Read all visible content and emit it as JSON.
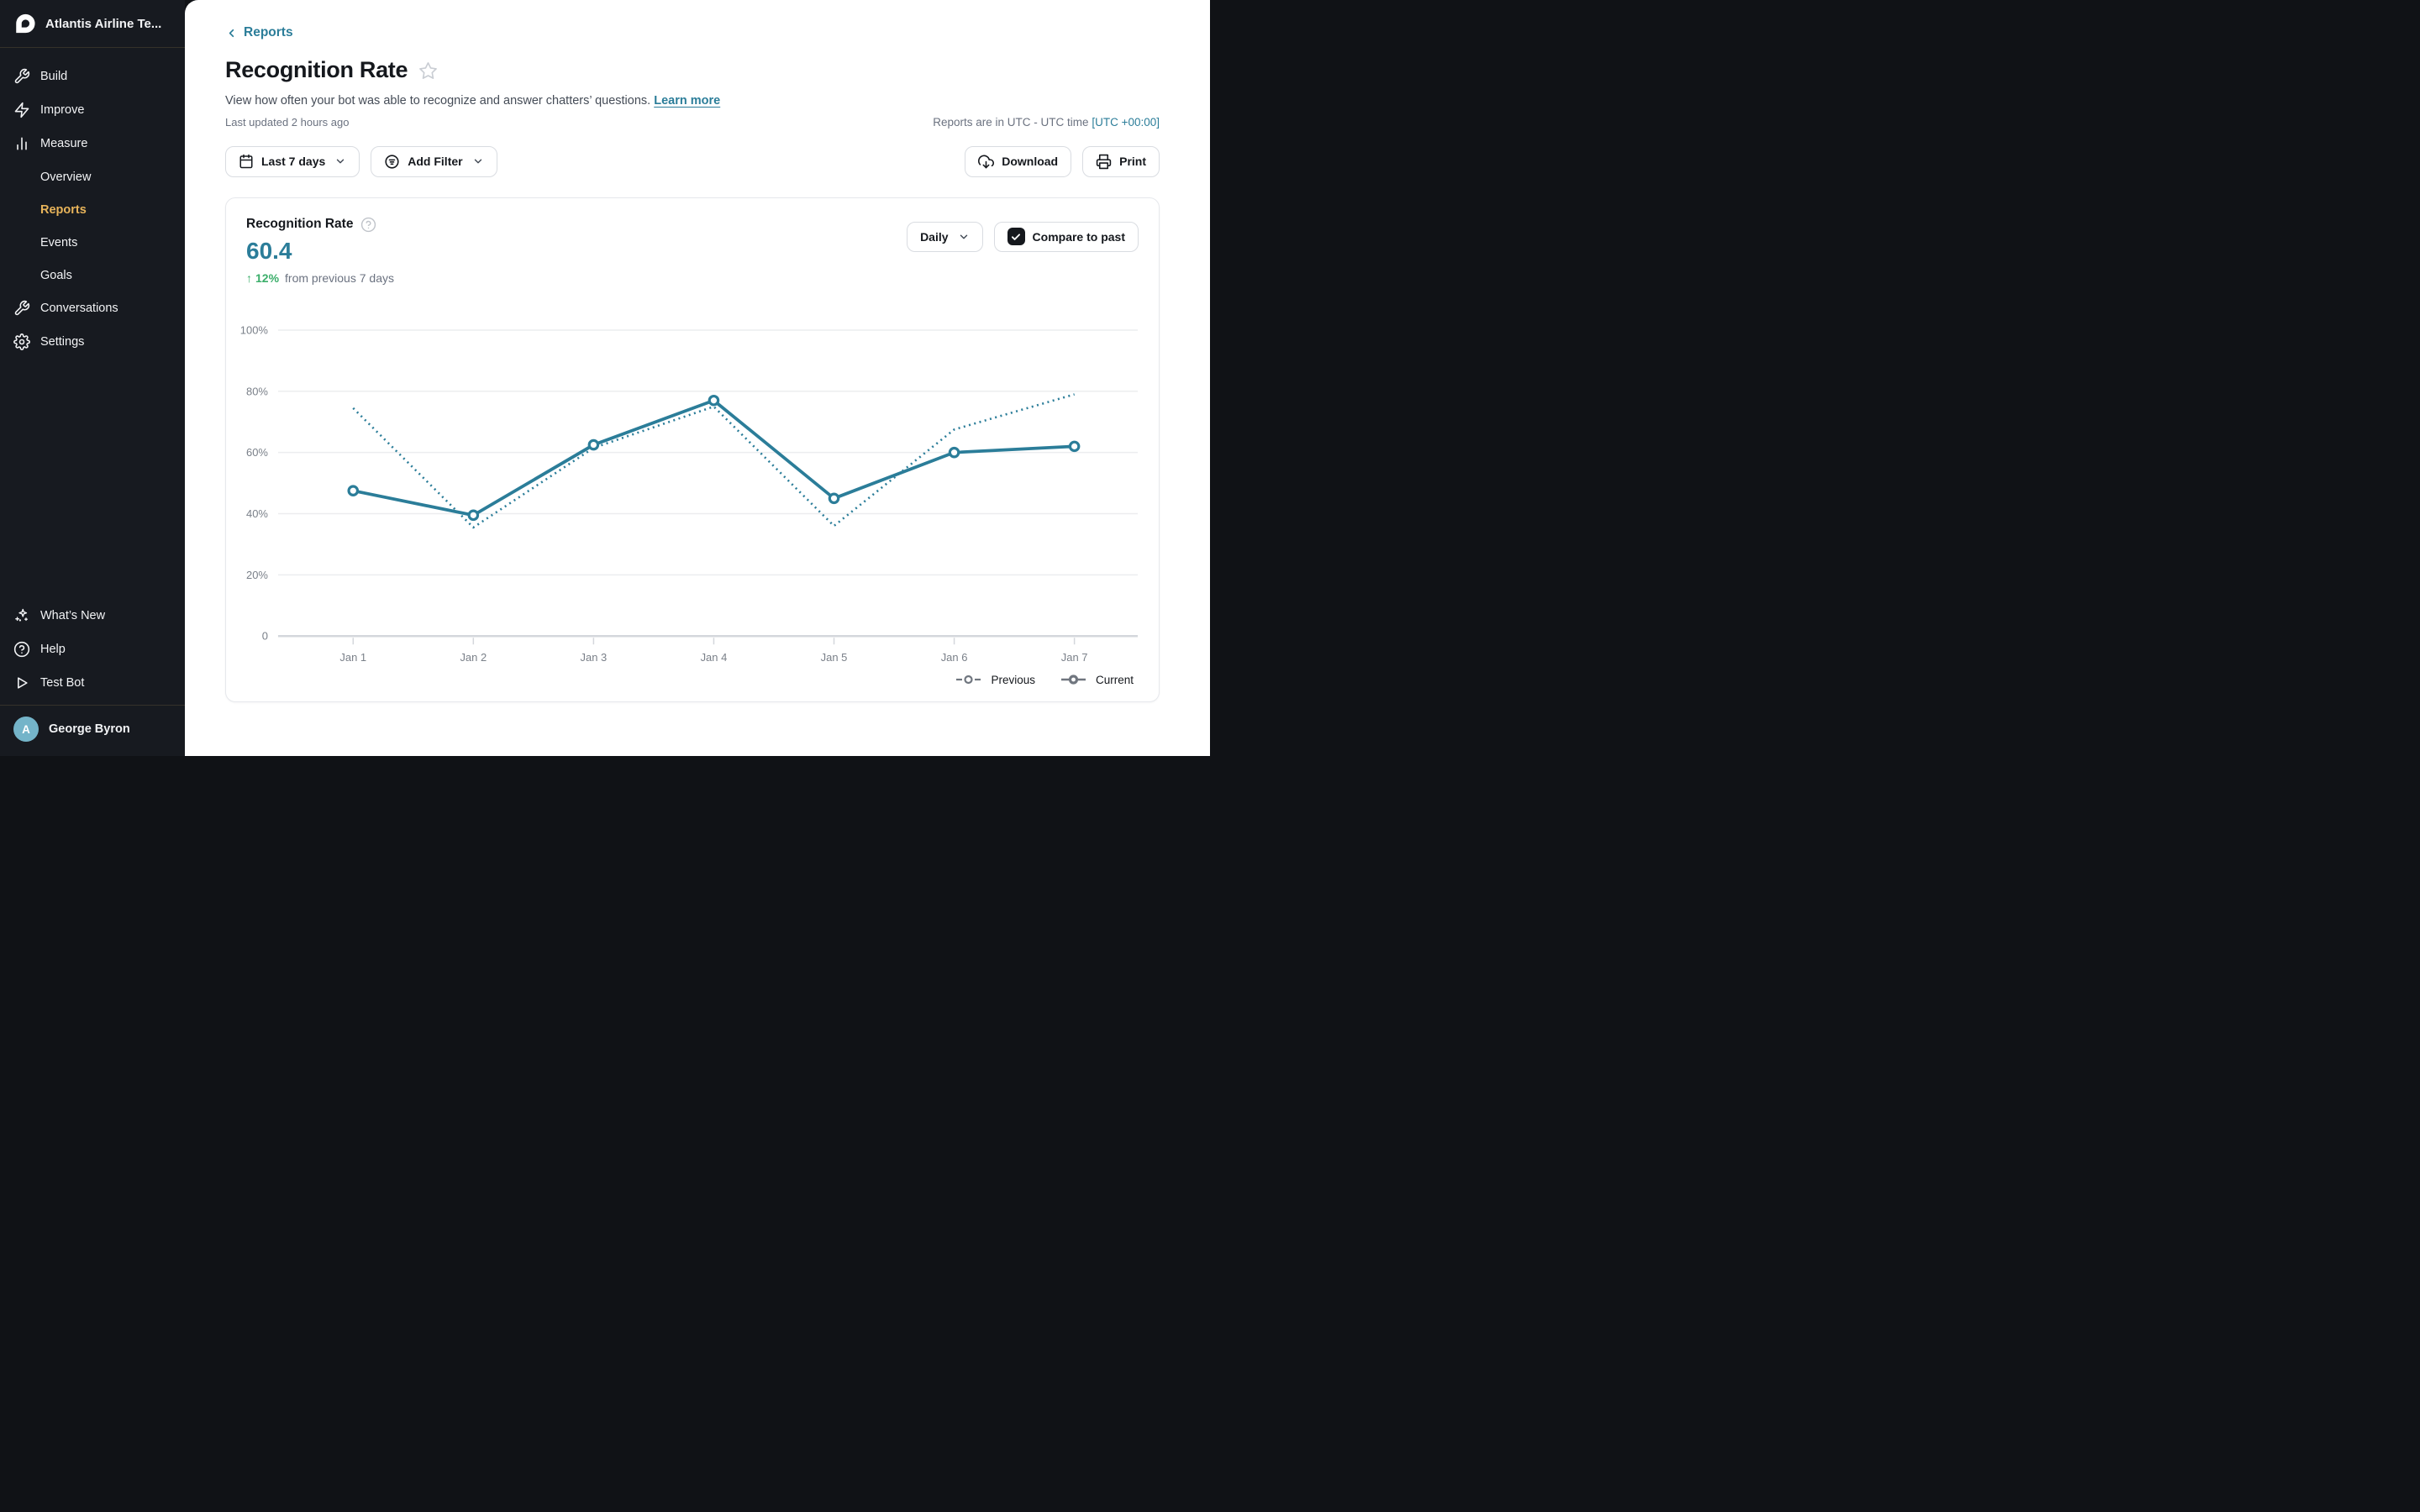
{
  "sidebar": {
    "workspace": "Atlantis Airline Te...",
    "build": "Build",
    "improve": "Improve",
    "measure": "Measure",
    "overview": "Overview",
    "reports": "Reports",
    "events": "Events",
    "goals": "Goals",
    "conversations": "Conversations",
    "settings": "Settings",
    "whats_new": "What’s New",
    "help": "Help",
    "test_bot": "Test Bot",
    "user": "George Byron",
    "user_initial": "A"
  },
  "header": {
    "breadcrumb": "Reports",
    "title": "Recognition Rate",
    "description": "View how often your bot was able to recognize and answer chatters’ questions.",
    "learn_more": "Learn more",
    "last_updated": "Last updated 2 hours ago",
    "utc_note": "Reports are in UTC - UTC time",
    "utc_link": "[UTC +00:00]",
    "date_range": "Last 7 days",
    "add_filter": "Add Filter",
    "download": "Download",
    "print": "Print"
  },
  "card": {
    "metric_label": "Recognition Rate",
    "metric_value": "60.4",
    "delta_arrow": "↑",
    "delta_value": "12%",
    "delta_caption": "from previous 7 days",
    "interval": "Daily",
    "compare": "Compare to past",
    "legend_previous": "Previous",
    "legend_current": "Current"
  },
  "chart_data": {
    "type": "line",
    "title": "Recognition Rate",
    "categories": [
      "Jan 1",
      "Jan 2",
      "Jan 3",
      "Jan 4",
      "Jan 5",
      "Jan 6",
      "Jan 7"
    ],
    "series": [
      {
        "name": "Current",
        "style": "solid",
        "values": [
          47.5,
          39.5,
          62.5,
          77,
          45,
          60,
          62
        ]
      },
      {
        "name": "Previous",
        "style": "dotted",
        "values": [
          74.5,
          35.5,
          61.5,
          75,
          36,
          67.5,
          79
        ]
      }
    ],
    "unit": "%",
    "ylim": [
      0,
      100
    ],
    "yticks": [
      100,
      80,
      60,
      40,
      20,
      0
    ],
    "ytick_labels": [
      "100%",
      "80%",
      "60%",
      "40%",
      "20%",
      "0"
    ],
    "grid": true,
    "legend_position": "bottom-right",
    "line_color": "#2B7D99"
  },
  "icons": {
    "logo": "ada-mark",
    "build": "wrench-icon",
    "improve": "bolt-icon",
    "measure": "bar-chart-icon",
    "conversations": "wrench-icon",
    "settings": "gear-icon",
    "whats_new": "sparkles-icon",
    "help": "question-circle-icon",
    "test_bot": "play-icon",
    "date_range": "calendar-icon",
    "add_filter": "filter-icon",
    "download": "cloud-download-icon",
    "print": "printer-icon",
    "favorite": "star-icon",
    "compare": "checkbox-check-icon"
  },
  "colors": {
    "accent_teal": "#2B7D99",
    "active_gold": "#E8B45A",
    "positive_green": "#3BAE6A",
    "sidebar_bg": "#171A20",
    "avatar_teal": "#74B4C9"
  }
}
